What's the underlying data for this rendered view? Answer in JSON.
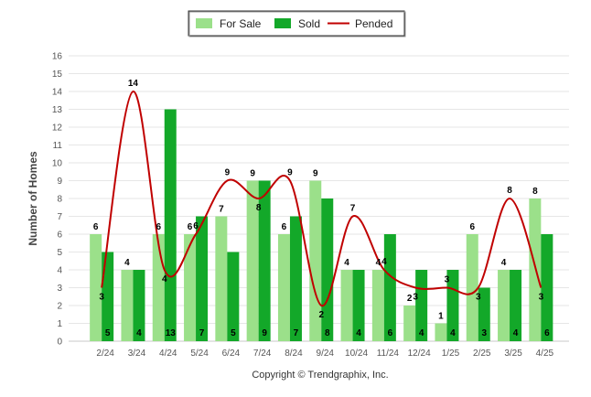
{
  "chart_data": {
    "type": "bar",
    "ylabel": "Number of Homes",
    "ylim": [
      0,
      16
    ],
    "yticks": [
      0,
      1,
      2,
      3,
      4,
      5,
      6,
      7,
      8,
      9,
      10,
      11,
      12,
      13,
      14,
      15,
      16
    ],
    "grid": true,
    "legend_position": "top-center",
    "categories": [
      "2/24",
      "3/24",
      "4/24",
      "5/24",
      "6/24",
      "7/24",
      "8/24",
      "9/24",
      "10/24",
      "11/24",
      "12/24",
      "1/25",
      "2/25",
      "3/25",
      "4/25"
    ],
    "series": [
      {
        "name": "For Sale",
        "type": "bar",
        "color": "#9be08a",
        "values": [
          6,
          4,
          6,
          6,
          7,
          9,
          6,
          9,
          4,
          4,
          2,
          1,
          6,
          4,
          8
        ]
      },
      {
        "name": "Sold",
        "type": "bar",
        "color": "#13a829",
        "values": [
          5,
          4,
          13,
          7,
          5,
          9,
          7,
          8,
          4,
          6,
          4,
          4,
          3,
          4,
          6
        ]
      },
      {
        "name": "Pended",
        "type": "line",
        "color": "#c00000",
        "values": [
          3,
          14,
          4,
          6,
          9,
          8,
          9,
          2,
          7,
          4,
          3,
          3,
          3,
          8,
          3
        ]
      }
    ]
  },
  "footer": {
    "copyright": "Copyright © Trendgraphix, Inc."
  }
}
